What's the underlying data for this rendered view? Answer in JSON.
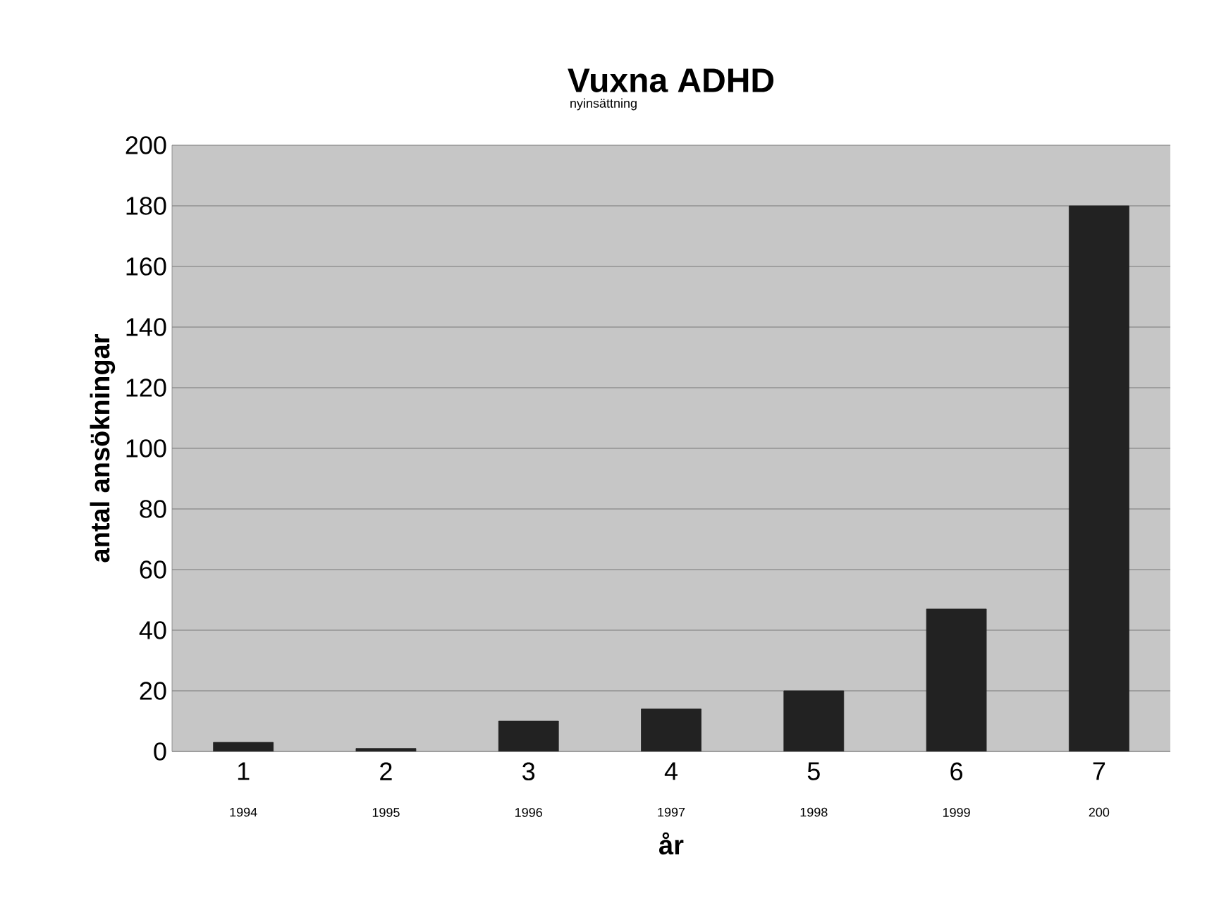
{
  "chart_data": {
    "type": "bar",
    "title": "Vuxna ADHD",
    "subtitle": "nyinsättning",
    "xlabel": "år",
    "ylabel": "antal ansökningar",
    "categories": [
      "1",
      "2",
      "3",
      "4",
      "5",
      "6",
      "7"
    ],
    "values": [
      3,
      1,
      10,
      14,
      20,
      47,
      180
    ],
    "color": "#222222",
    "ylim": [
      0,
      200
    ],
    "yticks": [
      0,
      20,
      40,
      60,
      80,
      100,
      120,
      140,
      160,
      180,
      200
    ],
    "grid": "y",
    "annotations": [
      "1994",
      "1995",
      "1996",
      "1997",
      "1998",
      "1999",
      "200"
    ]
  }
}
